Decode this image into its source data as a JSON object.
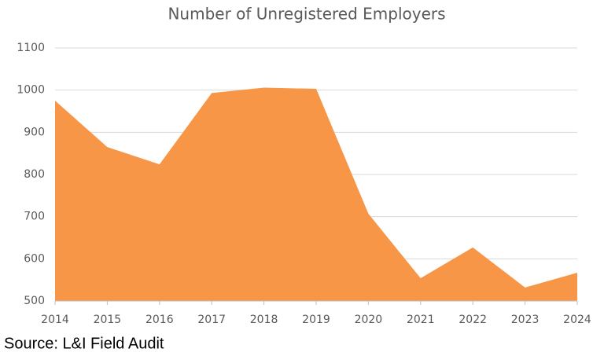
{
  "chart_data": {
    "type": "area",
    "title": "Number of Unregistered Employers",
    "x": [
      2014,
      2015,
      2016,
      2017,
      2018,
      2019,
      2020,
      2021,
      2022,
      2023,
      2024
    ],
    "values": [
      975,
      865,
      824,
      993,
      1006,
      1003,
      707,
      554,
      627,
      532,
      567
    ],
    "color": "#f79646",
    "xlim": [
      2014,
      2024
    ],
    "xticks": [
      2014,
      2015,
      2016,
      2017,
      2018,
      2019,
      2020,
      2021,
      2022,
      2023,
      2024
    ],
    "ylim": [
      500,
      1100
    ],
    "yticks": [
      500,
      600,
      700,
      800,
      900,
      1000,
      1100
    ],
    "grid": true,
    "source": "Source: L&I Field Audit"
  }
}
